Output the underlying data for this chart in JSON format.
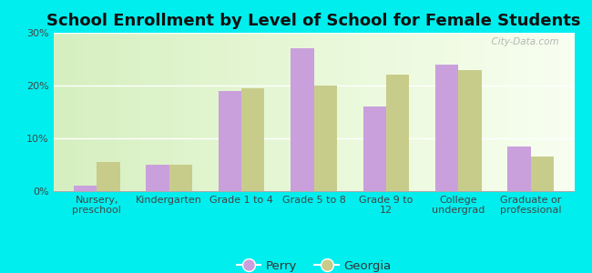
{
  "title": "School Enrollment by Level of School for Female Students",
  "categories": [
    "Nursery,\npreschool",
    "Kindergarten",
    "Grade 1 to 4",
    "Grade 5 to 8",
    "Grade 9 to\n12",
    "College\nundergrad",
    "Graduate or\nprofessional"
  ],
  "perry_values": [
    1,
    5,
    19,
    27,
    16,
    24,
    8.5
  ],
  "georgia_values": [
    5.5,
    5,
    19.5,
    20,
    22,
    23,
    6.5
  ],
  "perry_color": "#c9a0dc",
  "georgia_color": "#c8cc8a",
  "background_color": "#00eeee",
  "ylim": [
    0,
    30
  ],
  "yticks": [
    0,
    10,
    20,
    30
  ],
  "ytick_labels": [
    "0%",
    "10%",
    "20%",
    "30%"
  ],
  "legend_perry": "Perry",
  "legend_georgia": "Georgia",
  "title_fontsize": 13,
  "tick_fontsize": 8,
  "legend_fontsize": 9.5,
  "watermark": "  City-Data.com"
}
